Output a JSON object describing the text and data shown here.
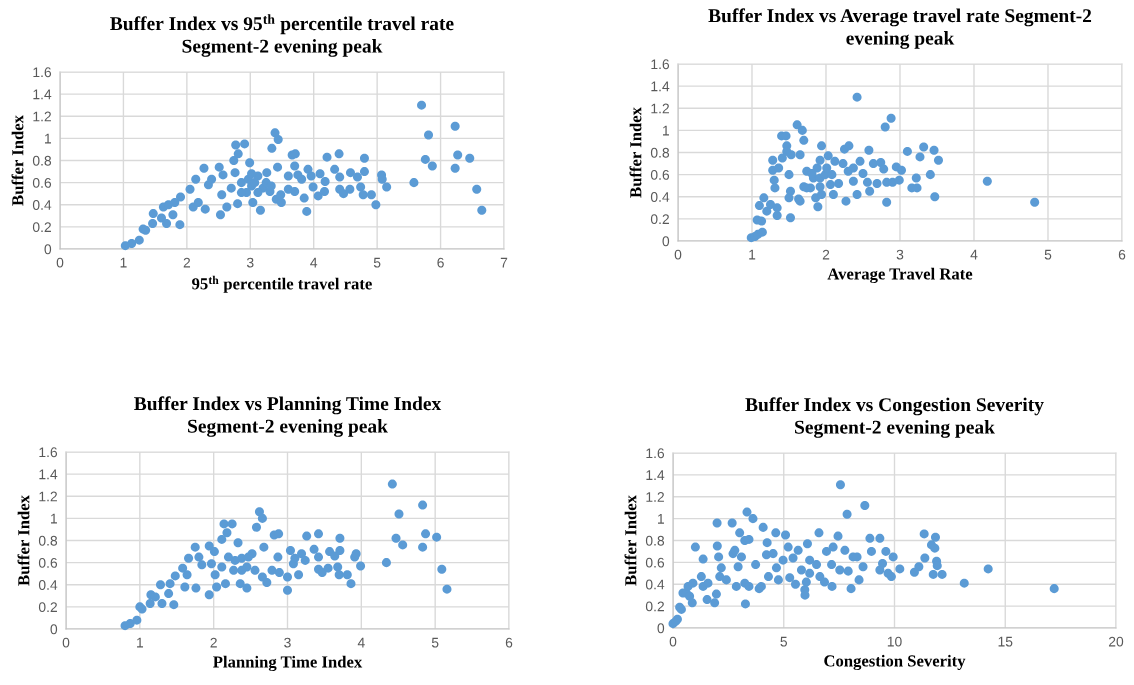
{
  "chart_data": [
    {
      "type": "scatter",
      "title": "Buffer Index vs 95$^{th}$ percentile travel rate\nSegment-2 evening peak",
      "xlabel": "95$^{th}$ percentile travel rate",
      "ylabel": "Buffer Index",
      "xlim": [
        0,
        7
      ],
      "xticks": [
        0,
        1,
        2,
        3,
        4,
        5,
        6,
        7
      ],
      "ylim": [
        0,
        1.6
      ],
      "yticks": [
        0,
        0.2,
        0.4,
        0.6,
        0.8,
        1,
        1.2,
        1.4,
        1.6
      ],
      "grid": true,
      "marker": "circle",
      "legend": false,
      "series": [
        {
          "color": "#5b9bd5",
          "x": [
            1.03,
            1.13,
            1.25,
            1.31,
            1.35,
            1.46,
            1.47,
            1.6,
            1.68,
            1.63,
            1.71,
            1.78,
            1.81,
            1.89,
            1.9,
            2.05,
            2.1,
            2.14,
            2.18,
            2.27,
            2.29,
            2.34,
            2.39,
            2.51,
            2.53,
            2.55,
            2.57,
            2.63,
            2.7,
            2.74,
            2.77,
            2.81,
            2.8,
            2.86,
            2.91,
            2.94,
            2.99,
            3.02,
            3.04,
            3.12,
            3.16,
            3.2,
            3.26,
            3.31,
            3.34,
            3.39,
            3.44,
            3.43,
            3.41,
            3.49,
            3.48,
            3.6,
            3.66,
            3.71,
            3.7,
            3.75,
            3.7,
            3.85,
            3.89,
            3.91,
            3.99,
            4.07,
            4.1,
            4.17,
            4.21,
            4.18,
            4.33,
            4.4,
            4.41,
            4.47,
            4.41,
            4.58,
            4.57,
            4.69,
            4.74,
            4.8,
            4.8,
            4.78,
            4.91,
            4.98,
            5.07,
            5.08,
            5.15,
            5.58,
            5.7,
            5.81,
            5.76,
            5.87,
            6.23,
            6.23,
            6.27,
            6.46,
            6.57,
            6.65,
            2.97,
            3.07,
            2.86,
            3.25,
            2.76,
            3.12,
            3.02,
            3.33,
            3.6,
            3.81,
            3.96
          ],
          "values": [
            0.03,
            0.05,
            0.08,
            0.18,
            0.17,
            0.23,
            0.32,
            0.28,
            0.23,
            0.38,
            0.4,
            0.31,
            0.42,
            0.22,
            0.47,
            0.54,
            0.38,
            0.63,
            0.42,
            0.73,
            0.36,
            0.58,
            0.63,
            0.74,
            0.31,
            0.49,
            0.67,
            0.38,
            0.55,
            0.8,
            0.94,
            0.86,
            0.41,
            0.6,
            0.95,
            0.51,
            0.78,
            0.57,
            0.42,
            0.66,
            0.35,
            0.55,
            0.69,
            0.52,
            0.91,
            1.05,
            0.99,
            0.74,
            0.45,
            0.42,
            0.49,
            0.54,
            0.85,
            0.86,
            0.75,
            0.67,
            0.52,
            0.46,
            0.34,
            0.72,
            0.56,
            0.48,
            0.68,
            0.52,
            0.83,
            0.61,
            0.72,
            0.86,
            0.54,
            0.5,
            0.65,
            0.69,
            0.54,
            0.65,
            0.56,
            0.82,
            0.7,
            0.49,
            0.49,
            0.4,
            0.67,
            0.63,
            0.56,
            0.6,
            1.3,
            1.03,
            0.81,
            0.75,
            1.11,
            0.73,
            0.85,
            0.82,
            0.54,
            0.35,
            0.63,
            0.6,
            0.51,
            0.6,
            0.69,
            0.51,
            0.68,
            0.57,
            0.66,
            0.63,
            0.66
          ]
        }
      ]
    },
    {
      "type": "scatter",
      "title": "Buffer Index vs Average travel rate Segment-2\nevening peak",
      "xlabel": "Average Travel Rate",
      "ylabel": "Buffer Index",
      "xlim": [
        0,
        6
      ],
      "xticks": [
        0,
        1,
        2,
        3,
        4,
        5,
        6
      ],
      "ylim": [
        0,
        1.6
      ],
      "yticks": [
        0,
        0.2,
        0.4,
        0.6,
        0.8,
        1,
        1.2,
        1.4,
        1.6
      ],
      "grid": true,
      "marker": "circle",
      "legend": false,
      "series": [
        {
          "color": "#5b9bd5",
          "x": [
            0.99,
            1.04,
            1.08,
            1.14,
            1.07,
            1.13,
            1.1,
            1.16,
            1.2,
            1.25,
            1.28,
            1.28,
            1.3,
            1.31,
            1.34,
            1.36,
            1.34,
            1.4,
            1.46,
            1.41,
            1.47,
            1.47,
            1.52,
            1.52,
            1.5,
            1.53,
            1.5,
            1.61,
            1.68,
            1.7,
            1.65,
            1.63,
            1.65,
            1.7,
            1.74,
            1.79,
            1.83,
            1.86,
            1.89,
            1.88,
            1.92,
            1.94,
            1.92,
            1.94,
            1.99,
            2.03,
            2.06,
            2.1,
            2.12,
            2.17,
            2.23,
            2.25,
            2.31,
            2.27,
            2.3,
            2.37,
            2.42,
            2.42,
            2.46,
            2.5,
            2.56,
            2.58,
            2.59,
            2.64,
            2.69,
            2.74,
            2.78,
            2.8,
            2.88,
            2.82,
            2.82,
            2.9,
            2.95,
            2.99,
            3.02,
            3.1,
            3.16,
            3.23,
            3.22,
            3.27,
            3.32,
            3.41,
            3.46,
            3.47,
            3.52,
            4.18,
            4.82,
            2.01,
            1.81,
            2.08,
            1.74,
            1.92,
            2.37
          ],
          "values": [
            0.03,
            0.04,
            0.06,
            0.08,
            0.19,
            0.18,
            0.32,
            0.39,
            0.27,
            0.33,
            0.73,
            0.64,
            0.55,
            0.48,
            0.23,
            0.66,
            0.3,
            0.95,
            0.95,
            0.75,
            0.86,
            0.81,
            0.45,
            0.21,
            0.39,
            0.78,
            0.6,
            1.05,
            1.0,
            0.91,
            0.78,
            0.38,
            0.36,
            0.49,
            0.63,
            0.48,
            0.57,
            0.39,
            0.31,
            0.66,
            0.57,
            0.86,
            0.73,
            0.42,
            0.6,
            0.77,
            0.51,
            0.42,
            0.72,
            0.52,
            0.7,
            0.83,
            0.86,
            0.36,
            0.63,
            0.54,
            1.3,
            0.42,
            0.72,
            0.61,
            0.53,
            0.82,
            0.45,
            0.7,
            0.52,
            0.71,
            0.65,
            1.03,
            1.11,
            0.35,
            0.53,
            0.53,
            0.67,
            0.55,
            0.64,
            0.81,
            0.48,
            0.48,
            0.57,
            0.76,
            0.85,
            0.6,
            0.82,
            0.4,
            0.73,
            0.54,
            0.35,
            0.66,
            0.61,
            0.6,
            0.48,
            0.49,
            0.66
          ]
        }
      ]
    },
    {
      "type": "scatter",
      "title": "Buffer Index vs Planning Time Index\nSegment-2 evening peak",
      "xlabel": "Planning Time Index",
      "ylabel": "Buffer Index",
      "xlim": [
        0,
        6
      ],
      "xticks": [
        0,
        1,
        2,
        3,
        4,
        5,
        6
      ],
      "ylim": [
        0,
        1.6
      ],
      "yticks": [
        0,
        0.2,
        0.4,
        0.6,
        0.8,
        1,
        1.2,
        1.4,
        1.6
      ],
      "grid": true,
      "marker": "circle",
      "legend": false,
      "series": [
        {
          "color": "#5b9bd5",
          "x": [
            0.8,
            0.87,
            0.96,
            1.0,
            1.03,
            1.14,
            1.15,
            1.21,
            1.3,
            1.28,
            1.39,
            1.41,
            1.46,
            1.48,
            1.58,
            1.64,
            1.61,
            1.66,
            1.75,
            1.76,
            1.8,
            1.84,
            1.94,
            1.94,
            1.97,
            2.01,
            2.02,
            2.04,
            2.11,
            2.14,
            2.18,
            2.16,
            2.2,
            2.25,
            2.27,
            2.33,
            2.36,
            2.38,
            2.45,
            2.45,
            2.52,
            2.56,
            2.58,
            2.62,
            2.66,
            2.68,
            2.66,
            2.72,
            2.79,
            2.82,
            2.88,
            2.87,
            2.89,
            3.0,
            3.0,
            3.04,
            3.08,
            3.15,
            3.19,
            3.24,
            3.26,
            3.36,
            3.42,
            3.42,
            3.47,
            3.42,
            3.55,
            3.57,
            3.64,
            3.68,
            3.71,
            3.71,
            3.7,
            3.81,
            3.86,
            3.91,
            3.93,
            3.99,
            4.34,
            4.42,
            4.51,
            4.47,
            4.56,
            4.83,
            4.83,
            4.87,
            5.02,
            5.09,
            5.16,
            2.29,
            2.38,
            2.11,
            2.47,
            3.1
          ],
          "values": [
            0.03,
            0.05,
            0.08,
            0.2,
            0.18,
            0.23,
            0.31,
            0.29,
            0.23,
            0.4,
            0.32,
            0.41,
            0.22,
            0.48,
            0.55,
            0.49,
            0.38,
            0.64,
            0.74,
            0.37,
            0.65,
            0.58,
            0.75,
            0.31,
            0.59,
            0.7,
            0.49,
            0.38,
            0.81,
            0.95,
            0.87,
            0.41,
            0.65,
            0.95,
            0.53,
            0.78,
            0.41,
            0.64,
            0.37,
            0.56,
            0.68,
            0.53,
            0.92,
            1.06,
            1.0,
            0.74,
            0.47,
            0.42,
            0.53,
            0.85,
            0.86,
            0.65,
            0.51,
            0.47,
            0.35,
            0.71,
            0.59,
            0.49,
            0.68,
            0.62,
            0.84,
            0.72,
            0.86,
            0.54,
            0.51,
            0.65,
            0.55,
            0.7,
            0.66,
            0.56,
            0.82,
            0.71,
            0.49,
            0.49,
            0.41,
            0.65,
            0.68,
            0.57,
            0.6,
            1.31,
            1.04,
            0.82,
            0.76,
            1.12,
            0.74,
            0.86,
            0.83,
            0.54,
            0.36,
            0.62,
            0.53,
            0.56,
            0.65,
            0.64
          ]
        }
      ]
    },
    {
      "type": "scatter",
      "title": "Buffer Index vs Congestion Severity\nSegment-2 evening peak",
      "xlabel": "Congestion Severity",
      "ylabel": "Buffer Index",
      "xlim": [
        0,
        20
      ],
      "xticks": [
        0,
        5,
        10,
        15,
        20
      ],
      "ylim": [
        0,
        1.6
      ],
      "yticks": [
        0,
        0.2,
        0.4,
        0.6,
        0.8,
        1,
        1.2,
        1.4,
        1.6
      ],
      "grid": true,
      "marker": "circle",
      "legend": false,
      "series": [
        {
          "color": "#5b9bd5",
          "x": [
            0.0,
            0.12,
            0.2,
            0.3,
            0.38,
            0.45,
            0.6,
            0.68,
            0.75,
            0.87,
            0.9,
            1.01,
            1.28,
            1.36,
            1.36,
            1.54,
            1.58,
            1.88,
            1.96,
            1.99,
            2.0,
            2.06,
            2.11,
            2.18,
            2.41,
            2.67,
            2.71,
            2.79,
            2.86,
            2.94,
            3.01,
            3.09,
            3.24,
            3.24,
            3.27,
            3.34,
            3.43,
            3.43,
            3.61,
            3.73,
            3.89,
            3.99,
            4.07,
            4.22,
            4.25,
            4.31,
            4.52,
            4.64,
            4.67,
            4.76,
            4.97,
            5.08,
            5.2,
            5.27,
            5.42,
            5.53,
            5.65,
            5.8,
            5.95,
            5.96,
            6.07,
            6.02,
            6.17,
            6.17,
            6.48,
            6.59,
            6.63,
            6.84,
            6.93,
            7.16,
            7.23,
            7.18,
            7.53,
            7.56,
            7.45,
            7.76,
            7.86,
            7.91,
            8.04,
            8.13,
            8.31,
            8.4,
            8.66,
            8.58,
            8.89,
            8.96,
            9.34,
            9.34,
            9.46,
            9.61,
            9.71,
            9.86,
            9.94,
            10.24,
            10.9,
            11.1,
            11.34,
            11.37,
            11.67,
            11.75,
            11.82,
            11.85,
            11.9,
            11.93,
            12.15,
            13.15,
            14.23,
            17.21
          ],
          "values": [
            0.04,
            0.06,
            0.08,
            0.19,
            0.17,
            0.32,
            0.32,
            0.38,
            0.29,
            0.23,
            0.41,
            0.74,
            0.47,
            0.63,
            0.38,
            0.26,
            0.41,
            0.23,
            0.31,
            0.96,
            0.75,
            0.65,
            0.47,
            0.55,
            0.44,
            0.96,
            0.68,
            0.71,
            0.38,
            0.56,
            0.87,
            0.65,
            0.41,
            0.8,
            0.22,
            1.06,
            0.81,
            0.38,
            1.0,
            0.58,
            0.36,
            0.38,
            0.92,
            0.67,
            0.78,
            0.47,
            0.68,
            0.87,
            0.55,
            0.44,
            0.62,
            0.85,
            0.74,
            0.46,
            0.64,
            0.4,
            0.71,
            0.53,
            0.35,
            0.3,
            0.77,
            0.42,
            0.62,
            0.5,
            0.58,
            0.87,
            0.47,
            0.42,
            0.7,
            0.58,
            0.74,
            0.38,
            0.53,
            1.31,
            0.84,
            0.71,
            1.04,
            0.52,
            0.36,
            0.65,
            0.65,
            0.44,
            1.12,
            0.56,
            0.82,
            0.7,
            0.82,
            0.53,
            0.59,
            0.7,
            0.5,
            0.47,
            0.65,
            0.54,
            0.51,
            0.56,
            0.86,
            0.64,
            0.76,
            0.49,
            0.73,
            0.83,
            0.61,
            0.57,
            0.49,
            0.41,
            0.54,
            0.36
          ]
        }
      ]
    }
  ]
}
